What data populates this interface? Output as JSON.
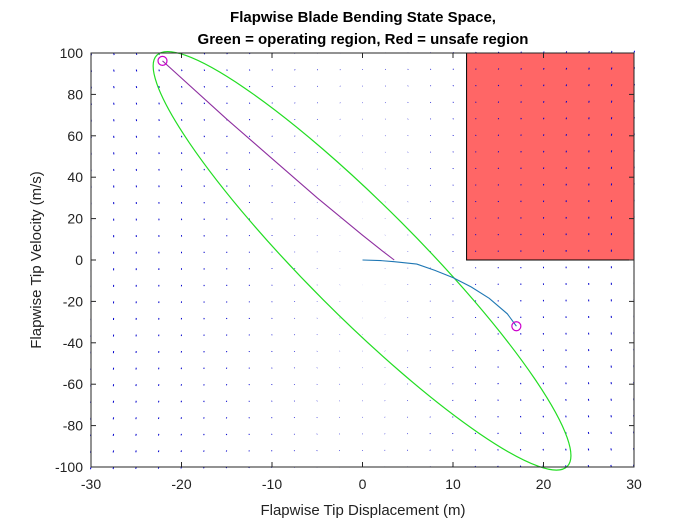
{
  "chart_data": {
    "type": "phase-plot",
    "title_line1": "Flapwise Blade Bending State Space,",
    "title_line2": "Green = operating region, Red = unsafe region",
    "xlabel": "Flapwise Tip Displacement (m)",
    "ylabel": "Flapwise Tip Velocity (m/s)",
    "xlim": [
      -30,
      30
    ],
    "ylim": [
      -100,
      100
    ],
    "xticks": [
      -30,
      -20,
      -10,
      0,
      10,
      20,
      30
    ],
    "yticks": [
      -100,
      -80,
      -60,
      -40,
      -20,
      0,
      20,
      40,
      60,
      80,
      100
    ],
    "grid": false,
    "colors": {
      "operating_region": "#22dd22",
      "unsafe_region": "#ff6666",
      "quiver": "#0000cc",
      "trajectory_1": "#8e2fa0",
      "trajectory_2": "#1f77b4",
      "markers": "#cc00cc"
    },
    "operating_region": {
      "shape": "ellipse",
      "center": [
        0,
        0
      ],
      "points": [
        [
          -22.1,
          96.2
        ],
        [
          -20,
          97
        ],
        [
          -10,
          78
        ],
        [
          0,
          48
        ],
        [
          10,
          13
        ],
        [
          17,
          -32
        ],
        [
          20,
          -52
        ],
        [
          22,
          -97
        ],
        [
          25,
          -93
        ],
        [
          24,
          -78
        ],
        [
          20,
          -48
        ],
        [
          10,
          -10
        ],
        [
          0,
          -47
        ],
        [
          -10,
          -80
        ],
        [
          -20,
          97
        ]
      ]
    },
    "unsafe_region": {
      "x": [
        11.5,
        30
      ],
      "y": [
        0,
        100
      ]
    },
    "series": [
      {
        "x": [
          -22.1,
          -15,
          -10,
          -5,
          0,
          2,
          3.5
        ],
        "y": [
          96.2,
          68,
          49,
          30,
          12,
          5,
          0
        ]
      },
      {
        "x": [
          0,
          2,
          3.5,
          6,
          8,
          10,
          12,
          14,
          16,
          17
        ],
        "y": [
          0,
          -0.3,
          -0.8,
          -2,
          -5,
          -8.5,
          -13,
          -18.5,
          -26,
          -32
        ]
      }
    ],
    "markers": [
      [
        -22.1,
        96.2
      ],
      [
        17,
        -32
      ]
    ]
  }
}
